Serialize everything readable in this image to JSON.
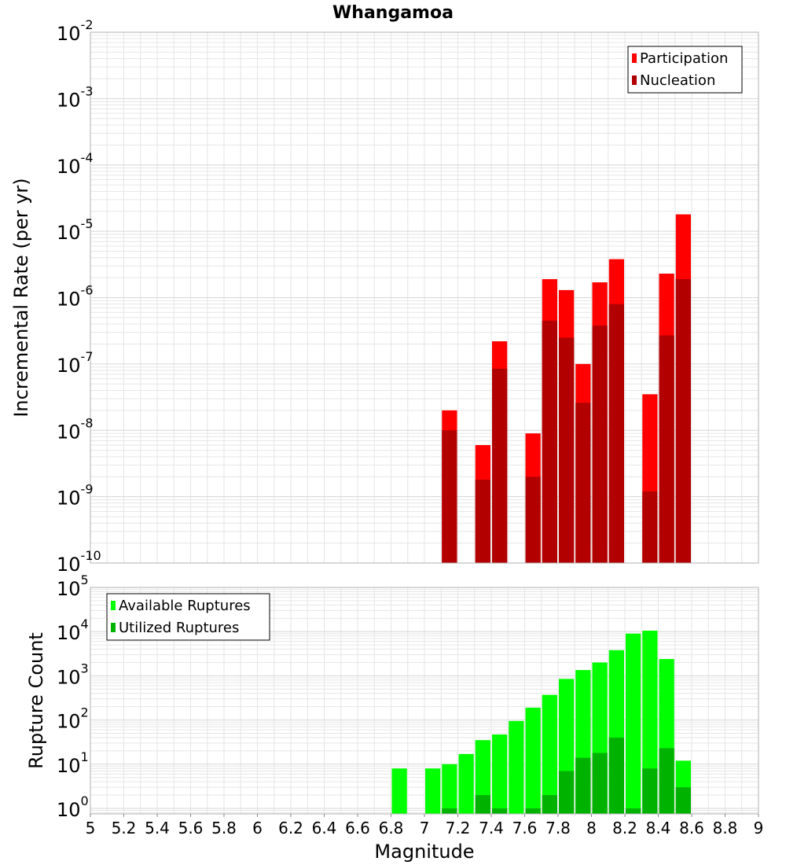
{
  "title": "Whangamoa",
  "xlabel": "Magnitude",
  "colors": {
    "participation": "#ff0000",
    "nucleation": "#b20000",
    "available": "#00ff00",
    "utilized": "#00b200",
    "grid": "#e6e6e6",
    "frame": "#b0b0b0"
  },
  "chart_data": [
    {
      "type": "bar",
      "panel": "top",
      "ylabel": "Incremental Rate (per yr)",
      "yscale": "log",
      "ylim": [
        1e-10,
        0.01
      ],
      "xlim": [
        5,
        9
      ],
      "bar_width": 0.1,
      "grid": true,
      "legend_position": "top-right",
      "series": [
        {
          "name": "Participation",
          "x": [
            7.15,
            7.35,
            7.45,
            7.65,
            7.75,
            7.85,
            7.95,
            8.05,
            8.15,
            8.35,
            8.45,
            8.55
          ],
          "values": [
            2e-08,
            6e-09,
            2.2e-07,
            9e-09,
            1.9e-06,
            1.3e-06,
            1e-07,
            1.7e-06,
            3.8e-06,
            3.5e-08,
            2.3e-06,
            1.8e-05
          ]
        },
        {
          "name": "Nucleation",
          "x": [
            7.15,
            7.35,
            7.45,
            7.65,
            7.75,
            7.85,
            7.95,
            8.05,
            8.15,
            8.35,
            8.45,
            8.55
          ],
          "values": [
            1e-08,
            1.8e-09,
            8.5e-08,
            2e-09,
            4.5e-07,
            2.5e-07,
            2.6e-08,
            3.8e-07,
            8e-07,
            1.2e-09,
            2.7e-07,
            1.9e-06
          ]
        }
      ]
    },
    {
      "type": "bar",
      "panel": "bottom",
      "ylabel": "Rupture Count",
      "yscale": "log",
      "ylim": [
        0.75,
        100000
      ],
      "xlim": [
        5,
        9
      ],
      "bar_width": 0.1,
      "grid": true,
      "legend_position": "top-left",
      "x_ticks": [
        "5",
        "5.2",
        "5.4",
        "5.6",
        "5.8",
        "6",
        "6.2",
        "6.4",
        "6.6",
        "6.8",
        "7",
        "7.2",
        "7.4",
        "7.6",
        "7.8",
        "8",
        "8.2",
        "8.4",
        "8.6",
        "8.8",
        "9"
      ],
      "series": [
        {
          "name": "Available Ruptures",
          "x": [
            6.85,
            7.05,
            7.15,
            7.25,
            7.35,
            7.45,
            7.55,
            7.65,
            7.75,
            7.85,
            7.95,
            8.05,
            8.15,
            8.25,
            8.35,
            8.45,
            8.55
          ],
          "values": [
            8,
            8,
            10,
            17,
            35,
            47,
            95,
            190,
            370,
            850,
            1350,
            2000,
            3800,
            9000,
            10500,
            2400,
            12
          ]
        },
        {
          "name": "Utilized Ruptures",
          "x": [
            7.15,
            7.35,
            7.45,
            7.65,
            7.75,
            7.85,
            7.95,
            8.05,
            8.15,
            8.25,
            8.35,
            8.45,
            8.55
          ],
          "values": [
            1,
            2,
            1,
            1,
            2,
            7,
            14,
            18,
            40,
            1,
            8,
            23,
            3
          ]
        }
      ]
    }
  ]
}
